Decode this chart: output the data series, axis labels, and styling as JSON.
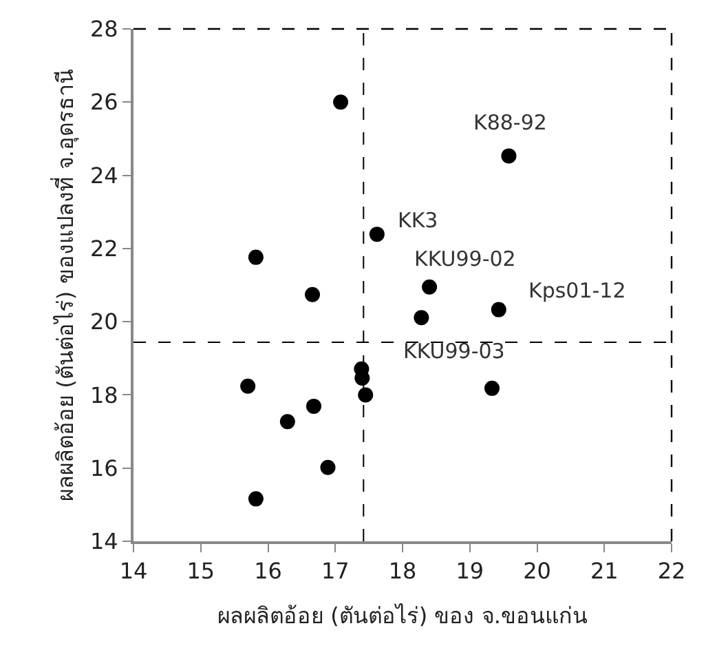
{
  "chart_data": {
    "type": "scatter",
    "xlabel": "ผลผลิตอ้อย (ตันต่อไร่) ของ จ.ขอนแก่น",
    "ylabel": "ผลผลิตอ้อย (ตันต่อไร่) ของแปลงที่ จ.อุดรธานี",
    "x": [
      17.08,
      19.58,
      17.62,
      15.82,
      16.66,
      18.4,
      18.28,
      19.43,
      17.39,
      17.4,
      17.45,
      19.33,
      15.7,
      16.68,
      16.29,
      16.89,
      15.82
    ],
    "values": [
      26.0,
      24.53,
      22.39,
      21.76,
      20.74,
      20.95,
      20.11,
      20.33,
      18.71,
      18.46,
      18.0,
      18.18,
      18.24,
      17.69,
      17.27,
      16.02,
      15.16
    ],
    "color": "#000000",
    "marker": "circle",
    "xlim": [
      14,
      22
    ],
    "xticks": [
      14,
      15,
      16,
      17,
      18,
      19,
      20,
      21,
      22
    ],
    "ylim": [
      14,
      28
    ],
    "yticks": [
      14,
      16,
      18,
      20,
      22,
      24,
      26,
      28
    ],
    "ref_lines": [
      {
        "axis": "x",
        "value": 17.42,
        "color": "#000000",
        "line_style": "dashed"
      },
      {
        "axis": "y",
        "value": 19.44,
        "color": "#000000",
        "line_style": "dashed"
      }
    ],
    "annotations": [
      {
        "text": "K88-92",
        "x": 19.58,
        "y": 24.53
      },
      {
        "text": "KK3",
        "x": 17.62,
        "y": 22.39
      },
      {
        "text": "KKU99-02",
        "x": 18.4,
        "y": 20.95
      },
      {
        "text": "Kps01-12",
        "x": 19.43,
        "y": 20.33
      },
      {
        "text": "KKU99-03",
        "x": 17.39,
        "y": 18.71
      }
    ]
  }
}
